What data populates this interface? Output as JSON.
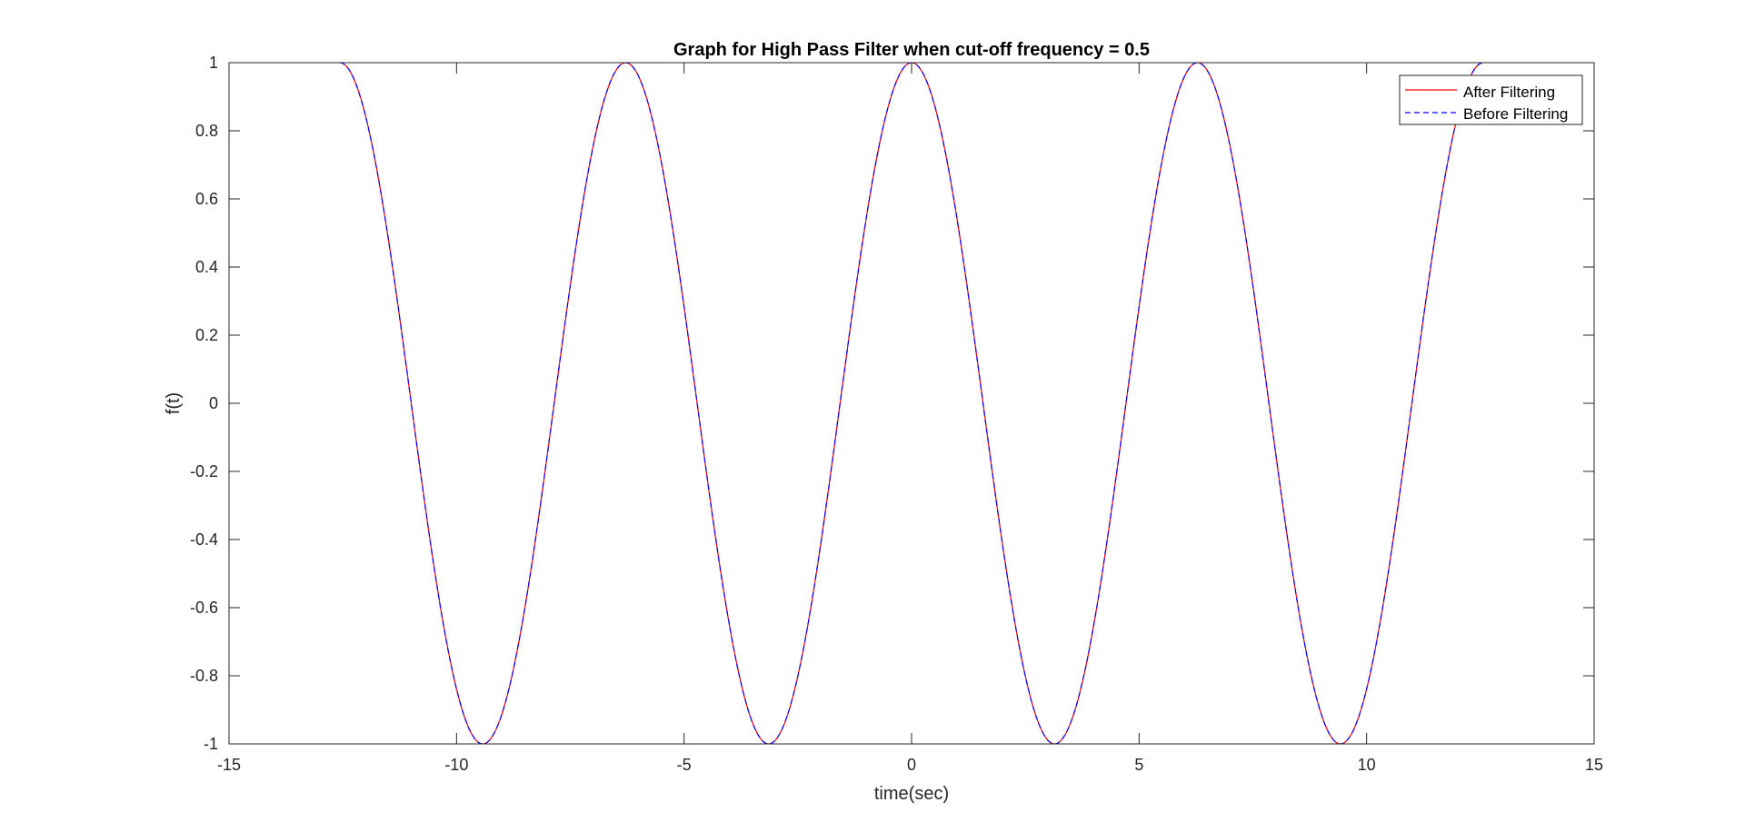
{
  "chart_data": {
    "type": "line",
    "title": "Graph for High Pass Filter when cut-off frequency = 0.5",
    "xlabel": "time(sec)",
    "ylabel": "f(t)",
    "xlim": [
      -15,
      15
    ],
    "ylim": [
      -1,
      1
    ],
    "xticks": [
      -15,
      -10,
      -5,
      0,
      5,
      10,
      15
    ],
    "xtick_labels": [
      "-15",
      "-10",
      "-5",
      "0",
      "5",
      "10",
      "15"
    ],
    "yticks": [
      -1,
      -0.8,
      -0.6,
      -0.4,
      -0.2,
      0,
      0.2,
      0.4,
      0.6,
      0.8,
      1
    ],
    "ytick_labels": [
      "-1",
      "-0.8",
      "-0.6",
      "-0.4",
      "-0.2",
      "0",
      "0.2",
      "0.4",
      "0.6",
      "0.8",
      "1"
    ],
    "grid": false,
    "legend_position": "top-right",
    "series": [
      {
        "name": "After Filtering",
        "color": "#ff0000",
        "line_style": "solid",
        "function": "cos(t)",
        "x_range": [
          -12.566,
          12.566
        ],
        "x": [
          -12.566,
          -11.781,
          -10.996,
          -10.21,
          -9.425,
          -8.639,
          -7.854,
          -7.069,
          -6.283,
          -5.498,
          -4.712,
          -3.927,
          -3.142,
          -2.356,
          -1.571,
          -0.785,
          0,
          0.785,
          1.571,
          2.356,
          3.142,
          3.927,
          4.712,
          5.498,
          6.283,
          7.069,
          7.854,
          8.639,
          9.425,
          10.21,
          10.996,
          11.781,
          12.566
        ],
        "y": [
          1,
          0.707,
          0,
          -0.707,
          -1,
          -0.707,
          0,
          0.707,
          1,
          0.707,
          0,
          -0.707,
          -1,
          -0.707,
          0,
          0.707,
          1,
          0.707,
          0,
          -0.707,
          -1,
          -0.707,
          0,
          0.707,
          1,
          0.707,
          0,
          -0.707,
          -1,
          -0.707,
          0,
          0.707,
          1
        ]
      },
      {
        "name": "Before Filtering",
        "color": "#0000ff",
        "line_style": "dashed",
        "function": "cos(t)",
        "x_range": [
          -12.566,
          12.566
        ],
        "x": [
          -12.566,
          -11.781,
          -10.996,
          -10.21,
          -9.425,
          -8.639,
          -7.854,
          -7.069,
          -6.283,
          -5.498,
          -4.712,
          -3.927,
          -3.142,
          -2.356,
          -1.571,
          -0.785,
          0,
          0.785,
          1.571,
          2.356,
          3.142,
          3.927,
          4.712,
          5.498,
          6.283,
          7.069,
          7.854,
          8.639,
          9.425,
          10.21,
          10.996,
          11.781,
          12.566
        ],
        "y": [
          1,
          0.707,
          0,
          -0.707,
          -1,
          -0.707,
          0,
          0.707,
          1,
          0.707,
          0,
          -0.707,
          -1,
          -0.707,
          0,
          0.707,
          1,
          0.707,
          0,
          -0.707,
          -1,
          -0.707,
          0,
          0.707,
          1,
          0.707,
          0,
          -0.707,
          -1,
          -0.707,
          0,
          0.707,
          1
        ]
      }
    ]
  }
}
